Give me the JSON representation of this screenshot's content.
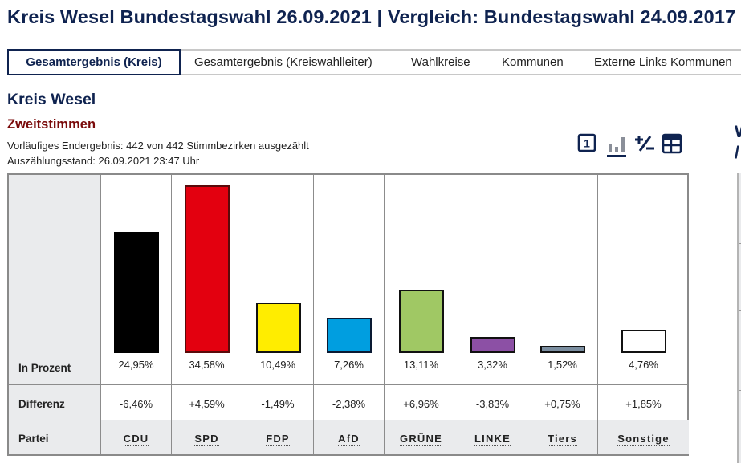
{
  "header": {
    "title": "Kreis Wesel Bundestagswahl 26.09.2021 | Vergleich: Bundestagswahl 24.09.2017"
  },
  "tabs": [
    {
      "label": "Gesamtergebnis (Kreis)",
      "active": true
    },
    {
      "label": "Gesamtergebnis (Kreiswahlleiter)",
      "active": false
    },
    {
      "label": "Wahlkreise",
      "active": false
    },
    {
      "label": "Kommunen",
      "active": false
    },
    {
      "label": "Externe Links Kommunen",
      "active": false
    }
  ],
  "section": {
    "region": "Kreis Wesel",
    "subtitle": "Zweitstimmen",
    "status_line": "Vorläufiges Endergebnis: 442 von 442 Stimmbezirken ausgezählt",
    "timestamp_line": "Auszählungsstand: 26.09.2021 23:47 Uhr"
  },
  "view_icons": [
    {
      "name": "single-value-icon",
      "glyph": "1",
      "active": false
    },
    {
      "name": "bar-chart-icon",
      "active": true
    },
    {
      "name": "plus-minus-icon",
      "active": false
    },
    {
      "name": "table-icon",
      "active": false
    }
  ],
  "side_panel": {
    "title_fragment": "W\n/"
  },
  "colors": {
    "primary": "#0f2350",
    "subtitle": "#7a0a0a",
    "label_bg": "#eaebed"
  },
  "chart_data": {
    "type": "bar",
    "title": "Zweitstimmen",
    "row_labels": {
      "percent": "In Prozent",
      "difference": "Differenz",
      "party": "Partei"
    },
    "categories": [
      "CDU",
      "SPD",
      "FDP",
      "AfD",
      "GRÜNE",
      "LINKE",
      "Tiers",
      "Sonstige"
    ],
    "values": [
      24.95,
      34.58,
      10.49,
      7.26,
      13.11,
      3.32,
      1.52,
      4.76
    ],
    "value_labels": [
      "24,95%",
      "34,58%",
      "10,49%",
      "7,26%",
      "13,11%",
      "3,32%",
      "1,52%",
      "4,76%"
    ],
    "differences": [
      -6.46,
      4.59,
      -1.49,
      -2.38,
      6.96,
      -3.83,
      0.75,
      1.85
    ],
    "difference_labels": [
      "-6,46%",
      "+4,59%",
      "-1,49%",
      "-2,38%",
      "+6,96%",
      "-3,83%",
      "+0,75%",
      "+1,85%"
    ],
    "bar_colors": [
      "#000000",
      "#e3000f",
      "#ffed00",
      "#009ee0",
      "#a0c864",
      "#8c50a5",
      "#7b8ea0",
      "#ffffff"
    ],
    "bar_borders": [
      "#000000",
      "#5a0a0a",
      "#111111",
      "#0a1a33",
      "#111111",
      "#111111",
      "#111111",
      "#111111"
    ],
    "xlabel": "Partei",
    "ylabel": "In Prozent",
    "ylim": [
      0,
      35
    ],
    "grid": false,
    "legend": "none"
  }
}
